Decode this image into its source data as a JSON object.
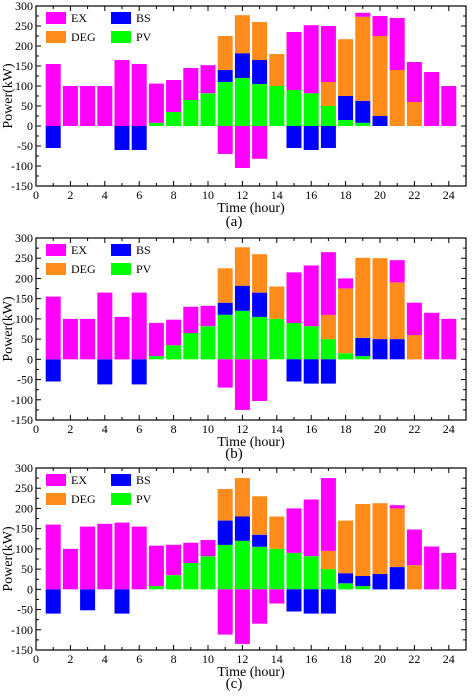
{
  "colors": {
    "EX": "#ff00ff",
    "BS": "#0000ff",
    "DEG": "#ff8c1a",
    "PV": "#00ff00"
  },
  "chart_data": [
    {
      "type": "bar",
      "stacked": true,
      "caption": "(a)",
      "xlabel": "Time (hour)",
      "ylabel": "Power(kW)",
      "xlim": [
        0,
        25
      ],
      "ylim": [
        -150,
        300
      ],
      "xticks": [
        0,
        2,
        4,
        6,
        8,
        10,
        12,
        14,
        16,
        18,
        20,
        22,
        24
      ],
      "yticks": [
        -150,
        -100,
        -50,
        0,
        50,
        100,
        150,
        200,
        250,
        300
      ],
      "x": [
        1,
        2,
        3,
        4,
        5,
        6,
        7,
        8,
        9,
        10,
        11,
        12,
        13,
        14,
        15,
        16,
        17,
        18,
        19,
        20,
        21,
        22,
        23,
        24
      ],
      "legend": [
        {
          "key": "EX",
          "label": "EX"
        },
        {
          "key": "BS",
          "label": "BS"
        },
        {
          "key": "DEG",
          "label": "DEG"
        },
        {
          "key": "PV",
          "label": "PV"
        }
      ],
      "series": [
        {
          "name": "PV",
          "values": [
            0,
            0,
            0,
            0,
            0,
            0,
            8,
            35,
            65,
            82,
            110,
            120,
            105,
            100,
            90,
            82,
            50,
            15,
            8,
            0,
            0,
            0,
            0,
            0
          ]
        },
        {
          "name": "BS",
          "values": [
            -55,
            0,
            0,
            0,
            -60,
            -60,
            0,
            0,
            0,
            0,
            30,
            62,
            60,
            0,
            -55,
            -60,
            -55,
            60,
            55,
            25,
            0,
            0,
            0,
            0
          ]
        },
        {
          "name": "DEG",
          "values": [
            0,
            0,
            0,
            0,
            0,
            0,
            0,
            0,
            0,
            0,
            85,
            95,
            95,
            80,
            0,
            0,
            60,
            142,
            210,
            200,
            140,
            60,
            0,
            0
          ]
        },
        {
          "name": "EX",
          "values": [
            155,
            100,
            100,
            100,
            165,
            155,
            98,
            80,
            80,
            70,
            -70,
            -105,
            -82,
            0,
            145,
            170,
            140,
            0,
            10,
            50,
            130,
            100,
            135,
            100
          ]
        }
      ]
    },
    {
      "type": "bar",
      "stacked": true,
      "caption": "(b)",
      "xlabel": "Time (hour)",
      "ylabel": "Power(kW)",
      "xlim": [
        0,
        25
      ],
      "ylim": [
        -150,
        300
      ],
      "xticks": [
        0,
        2,
        4,
        6,
        8,
        10,
        12,
        14,
        16,
        18,
        20,
        22,
        24
      ],
      "yticks": [
        -150,
        -100,
        -50,
        0,
        50,
        100,
        150,
        200,
        250,
        300
      ],
      "x": [
        1,
        2,
        3,
        4,
        5,
        6,
        7,
        8,
        9,
        10,
        11,
        12,
        13,
        14,
        15,
        16,
        17,
        18,
        19,
        20,
        21,
        22,
        23,
        24
      ],
      "legend": [
        {
          "key": "EX",
          "label": "EX"
        },
        {
          "key": "BS",
          "label": "BS"
        },
        {
          "key": "DEG",
          "label": "DEG"
        },
        {
          "key": "PV",
          "label": "PV"
        }
      ],
      "series": [
        {
          "name": "PV",
          "values": [
            0,
            0,
            0,
            0,
            0,
            0,
            8,
            35,
            65,
            82,
            110,
            120,
            105,
            100,
            90,
            82,
            50,
            15,
            8,
            0,
            0,
            0,
            0,
            0
          ]
        },
        {
          "name": "BS",
          "values": [
            -55,
            0,
            0,
            -62,
            0,
            -62,
            0,
            0,
            0,
            0,
            30,
            62,
            60,
            0,
            -55,
            -60,
            -60,
            0,
            45,
            50,
            50,
            0,
            0,
            0
          ]
        },
        {
          "name": "DEG",
          "values": [
            0,
            0,
            0,
            0,
            0,
            0,
            0,
            0,
            0,
            0,
            85,
            95,
            95,
            80,
            0,
            0,
            60,
            160,
            198,
            200,
            140,
            60,
            0,
            0
          ]
        },
        {
          "name": "EX",
          "values": [
            155,
            100,
            100,
            165,
            105,
            165,
            82,
            63,
            65,
            50,
            -70,
            -125,
            -103,
            0,
            125,
            150,
            155,
            25,
            0,
            0,
            55,
            80,
            115,
            100
          ]
        }
      ]
    },
    {
      "type": "bar",
      "stacked": true,
      "caption": "(c)",
      "xlabel": "Time (hour)",
      "ylabel": "Power(kW)",
      "xlim": [
        0,
        25
      ],
      "ylim": [
        -150,
        300
      ],
      "xticks": [
        0,
        2,
        4,
        6,
        8,
        10,
        12,
        14,
        16,
        18,
        20,
        22,
        24
      ],
      "yticks": [
        -150,
        -100,
        -50,
        0,
        50,
        100,
        150,
        200,
        250,
        300
      ],
      "x": [
        1,
        2,
        3,
        4,
        5,
        6,
        7,
        8,
        9,
        10,
        11,
        12,
        13,
        14,
        15,
        16,
        17,
        18,
        19,
        20,
        21,
        22,
        23,
        24
      ],
      "legend": [
        {
          "key": "EX",
          "label": "EX"
        },
        {
          "key": "BS",
          "label": "BS"
        },
        {
          "key": "DEG",
          "label": "DEG"
        },
        {
          "key": "PV",
          "label": "PV"
        }
      ],
      "series": [
        {
          "name": "PV",
          "values": [
            0,
            0,
            0,
            0,
            0,
            0,
            8,
            35,
            65,
            82,
            110,
            120,
            105,
            100,
            90,
            82,
            50,
            15,
            8,
            0,
            0,
            0,
            0,
            0
          ]
        },
        {
          "name": "BS",
          "values": [
            -60,
            0,
            -52,
            0,
            -60,
            0,
            0,
            0,
            0,
            0,
            60,
            60,
            30,
            0,
            -55,
            -60,
            -60,
            25,
            25,
            38,
            55,
            0,
            0,
            0
          ]
        },
        {
          "name": "DEG",
          "values": [
            0,
            0,
            0,
            0,
            0,
            0,
            0,
            0,
            0,
            0,
            78,
            95,
            95,
            80,
            0,
            0,
            45,
            130,
            178,
            175,
            145,
            60,
            0,
            0
          ]
        },
        {
          "name": "EX",
          "values": [
            160,
            100,
            155,
            162,
            165,
            155,
            100,
            75,
            50,
            40,
            -112,
            -135,
            -85,
            -35,
            110,
            140,
            180,
            0,
            0,
            0,
            8,
            88,
            106,
            90
          ]
        }
      ]
    }
  ]
}
